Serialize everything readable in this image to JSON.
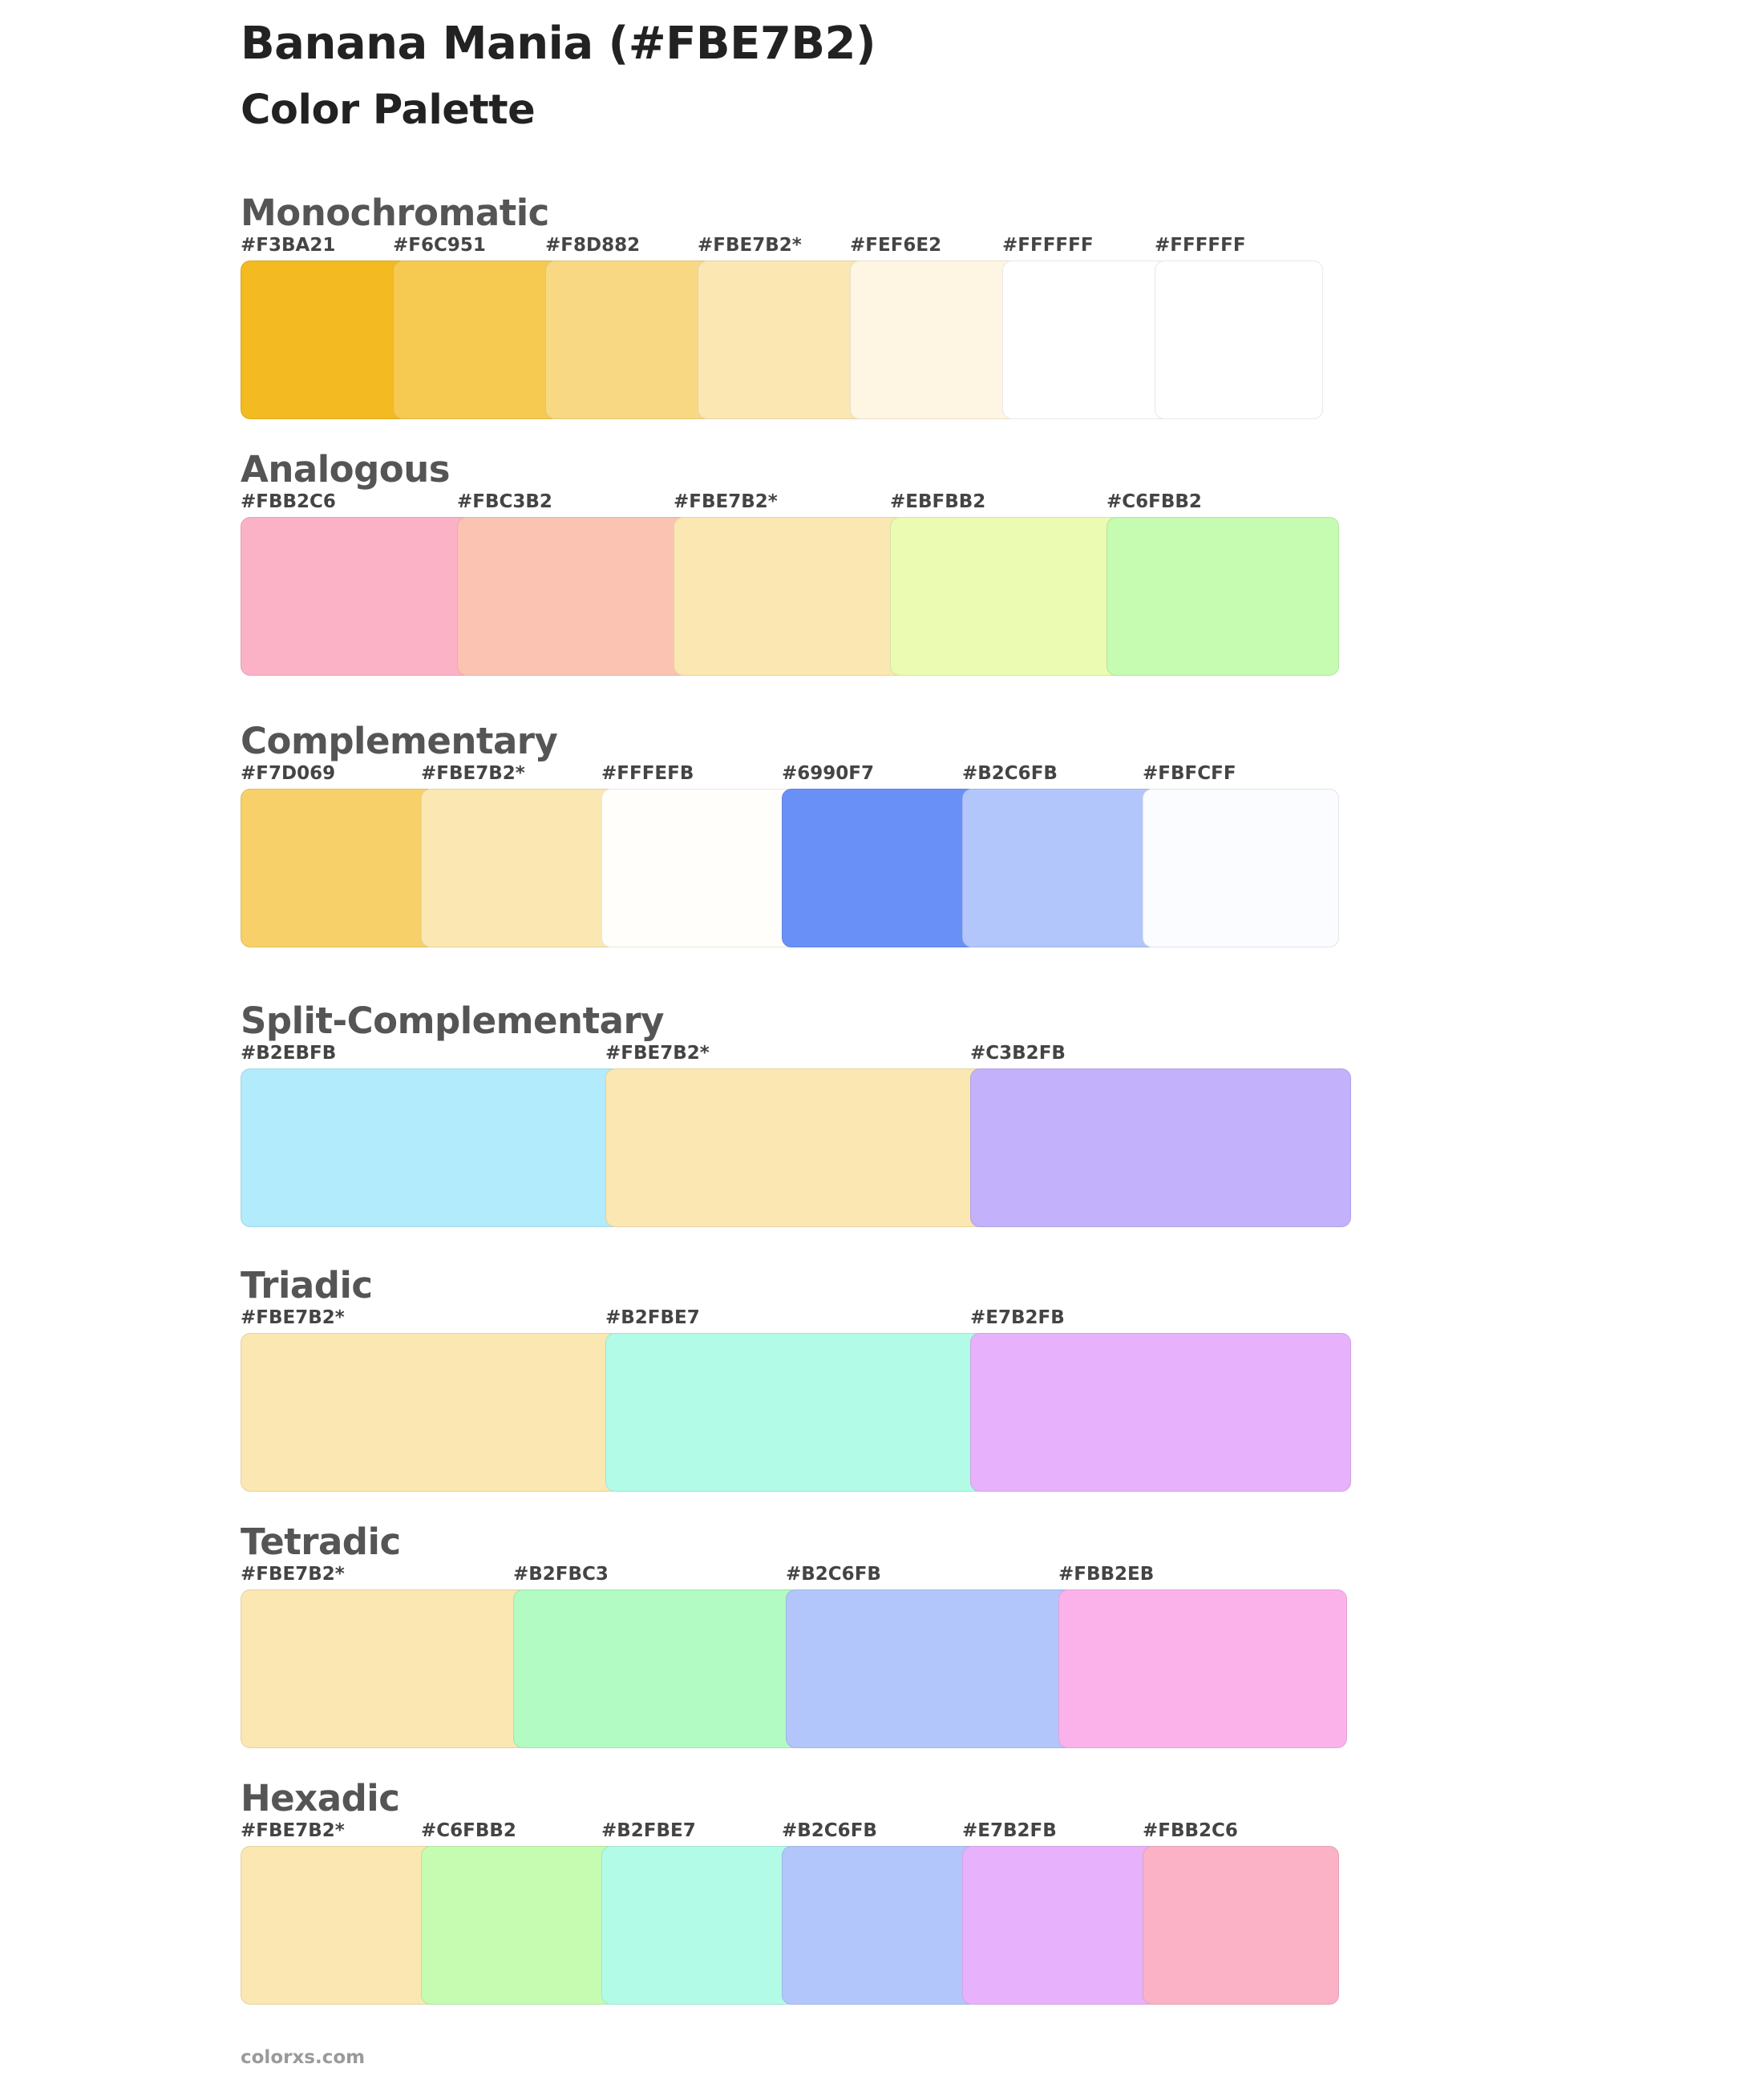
{
  "page": {
    "title": "Banana Mania (#FBE7B2)",
    "subtitle": "Color Palette",
    "footer": "colorxs.com"
  },
  "sections": [
    {
      "id": "mono",
      "title": "Monochromatic",
      "swatches": [
        {
          "label": "#F3BA21",
          "color": "#F3BA21"
        },
        {
          "label": "#F6C951",
          "color": "#F6C951"
        },
        {
          "label": "#F8D882",
          "color": "#F8D882"
        },
        {
          "label": "#FBE7B2*",
          "color": "#FBE7B2"
        },
        {
          "label": "#FEF6E2",
          "color": "#FEF6E2"
        },
        {
          "label": "#FFFFFF",
          "color": "#FFFFFF"
        },
        {
          "label": "#FFFFFF",
          "color": "#FFFFFF"
        }
      ]
    },
    {
      "id": "analog",
      "title": "Analogous",
      "swatches": [
        {
          "label": "#FBB2C6",
          "color": "#FBB2C6"
        },
        {
          "label": "#FBC3B2",
          "color": "#FBC3B2"
        },
        {
          "label": "#FBE7B2*",
          "color": "#FBE7B2"
        },
        {
          "label": "#EBFBB2",
          "color": "#EBFBB2"
        },
        {
          "label": "#C6FBB2",
          "color": "#C6FBB2"
        }
      ]
    },
    {
      "id": "comp",
      "title": "Complementary",
      "swatches": [
        {
          "label": "#F7D069",
          "color": "#F7D069"
        },
        {
          "label": "#FBE7B2*",
          "color": "#FBE7B2"
        },
        {
          "label": "#FFFEFB",
          "color": "#FFFEFB"
        },
        {
          "label": "#6990F7",
          "color": "#6990F7"
        },
        {
          "label": "#B2C6FB",
          "color": "#B2C6FB"
        },
        {
          "label": "#FBFCFF",
          "color": "#FBFCFF"
        }
      ]
    },
    {
      "id": "split",
      "title": "Split-Complementary",
      "swatches": [
        {
          "label": "#B2EBFB",
          "color": "#B2EBFB"
        },
        {
          "label": "#FBE7B2*",
          "color": "#FBE7B2"
        },
        {
          "label": "#C3B2FB",
          "color": "#C3B2FB"
        }
      ]
    },
    {
      "id": "triad",
      "title": "Triadic",
      "swatches": [
        {
          "label": "#FBE7B2*",
          "color": "#FBE7B2"
        },
        {
          "label": "#B2FBE7",
          "color": "#B2FBE7"
        },
        {
          "label": "#E7B2FB",
          "color": "#E7B2FB"
        }
      ]
    },
    {
      "id": "tetra",
      "title": "Tetradic",
      "swatches": [
        {
          "label": "#FBE7B2*",
          "color": "#FBE7B2"
        },
        {
          "label": "#B2FBC3",
          "color": "#B2FBC3"
        },
        {
          "label": "#B2C6FB",
          "color": "#B2C6FB"
        },
        {
          "label": "#FBB2EB",
          "color": "#FBB2EB"
        }
      ]
    },
    {
      "id": "hexa",
      "title": "Hexadic",
      "swatches": [
        {
          "label": "#FBE7B2*",
          "color": "#FBE7B2"
        },
        {
          "label": "#C6FBB2",
          "color": "#C6FBB2"
        },
        {
          "label": "#B2FBE7",
          "color": "#B2FBE7"
        },
        {
          "label": "#B2C6FB",
          "color": "#B2C6FB"
        },
        {
          "label": "#E7B2FB",
          "color": "#E7B2FB"
        },
        {
          "label": "#FBB2C6",
          "color": "#FBB2C6"
        }
      ]
    }
  ]
}
